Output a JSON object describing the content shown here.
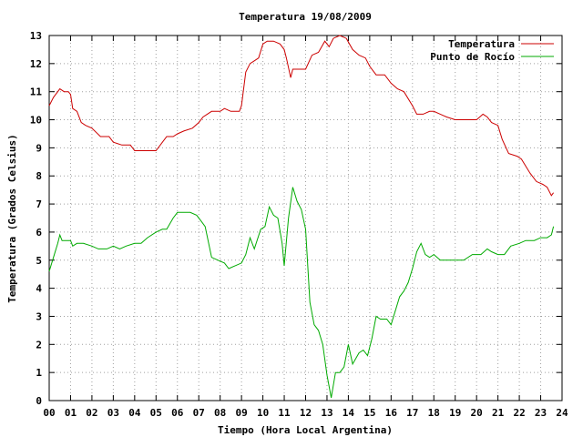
{
  "chart_data": {
    "type": "line",
    "title": "Temperatura 19/08/2009",
    "xlabel": "Tiempo (Hora Local Argentina)",
    "ylabel": "Temperatura (Grados Celsius)",
    "xlim": [
      0,
      24
    ],
    "ylim": [
      0,
      13
    ],
    "x_ticks": [
      "00",
      "01",
      "02",
      "03",
      "04",
      "05",
      "06",
      "07",
      "08",
      "09",
      "10",
      "11",
      "12",
      "13",
      "14",
      "15",
      "16",
      "17",
      "18",
      "19",
      "20",
      "21",
      "22",
      "23",
      "24"
    ],
    "y_ticks": [
      "0",
      "1",
      "2",
      "3",
      "4",
      "5",
      "6",
      "7",
      "8",
      "9",
      "10",
      "11",
      "12",
      "13"
    ],
    "grid": true,
    "legend_position": "top-right",
    "series": [
      {
        "name": "Temperatura",
        "color": "#cc0000",
        "x": [
          0.0,
          0.2,
          0.4,
          0.5,
          0.7,
          0.9,
          1.0,
          1.1,
          1.3,
          1.5,
          1.7,
          2.0,
          2.4,
          2.8,
          3.0,
          3.4,
          3.8,
          4.0,
          4.3,
          4.7,
          5.0,
          5.3,
          5.5,
          5.8,
          6.0,
          6.3,
          6.7,
          7.0,
          7.2,
          7.6,
          8.0,
          8.2,
          8.5,
          8.9,
          9.0,
          9.2,
          9.4,
          9.6,
          9.8,
          10.0,
          10.2,
          10.5,
          10.8,
          11.0,
          11.1,
          11.3,
          11.4,
          11.6,
          12.0,
          12.3,
          12.6,
          12.9,
          13.1,
          13.3,
          13.6,
          13.9,
          14.2,
          14.5,
          14.8,
          15.0,
          15.3,
          15.7,
          16.0,
          16.3,
          16.6,
          17.0,
          17.2,
          17.5,
          17.8,
          18.0,
          18.3,
          18.6,
          19.0,
          19.5,
          20.0,
          20.3,
          20.5,
          20.7,
          21.0,
          21.2,
          21.5,
          21.9,
          22.1,
          22.5,
          22.8,
          23.1,
          23.3,
          23.5,
          23.6
        ],
        "values": [
          10.5,
          10.8,
          11.0,
          11.1,
          11.0,
          11.0,
          10.9,
          10.4,
          10.3,
          9.9,
          9.8,
          9.7,
          9.4,
          9.4,
          9.2,
          9.1,
          9.1,
          8.9,
          8.9,
          8.9,
          8.9,
          9.2,
          9.4,
          9.4,
          9.5,
          9.6,
          9.7,
          9.9,
          10.1,
          10.3,
          10.3,
          10.4,
          10.3,
          10.3,
          10.5,
          11.7,
          12.0,
          12.1,
          12.2,
          12.7,
          12.8,
          12.8,
          12.7,
          12.5,
          12.2,
          11.5,
          11.8,
          11.8,
          11.8,
          12.3,
          12.4,
          12.8,
          12.6,
          12.9,
          13.0,
          12.9,
          12.5,
          12.3,
          12.2,
          11.9,
          11.6,
          11.6,
          11.3,
          11.1,
          11.0,
          10.5,
          10.2,
          10.2,
          10.3,
          10.3,
          10.2,
          10.1,
          10.0,
          10.0,
          10.0,
          10.2,
          10.1,
          9.9,
          9.8,
          9.3,
          8.8,
          8.7,
          8.6,
          8.1,
          7.8,
          7.7,
          7.6,
          7.3,
          7.4
        ]
      },
      {
        "name": "Punto de Rocío",
        "color": "#00aa00",
        "x": [
          0.0,
          0.2,
          0.4,
          0.5,
          0.6,
          0.8,
          1.0,
          1.1,
          1.3,
          1.6,
          2.0,
          2.3,
          2.7,
          3.0,
          3.3,
          3.6,
          4.0,
          4.3,
          4.6,
          5.0,
          5.3,
          5.5,
          5.8,
          6.0,
          6.3,
          6.6,
          6.9,
          7.1,
          7.3,
          7.6,
          7.9,
          8.2,
          8.4,
          8.7,
          9.0,
          9.2,
          9.4,
          9.6,
          9.9,
          10.1,
          10.3,
          10.5,
          10.7,
          10.9,
          11.0,
          11.2,
          11.4,
          11.6,
          11.8,
          12.0,
          12.2,
          12.4,
          12.6,
          12.8,
          13.0,
          13.2,
          13.4,
          13.6,
          13.8,
          14.0,
          14.2,
          14.5,
          14.7,
          14.9,
          15.1,
          15.3,
          15.5,
          15.8,
          16.0,
          16.2,
          16.4,
          16.6,
          16.8,
          17.0,
          17.2,
          17.4,
          17.6,
          17.8,
          18.0,
          18.3,
          18.6,
          19.0,
          19.4,
          19.8,
          20.2,
          20.5,
          20.7,
          21.0,
          21.3,
          21.6,
          22.0,
          22.3,
          22.7,
          23.0,
          23.3,
          23.5,
          23.6
        ],
        "values": [
          4.6,
          5.1,
          5.6,
          5.9,
          5.7,
          5.7,
          5.7,
          5.5,
          5.6,
          5.6,
          5.5,
          5.4,
          5.4,
          5.5,
          5.4,
          5.5,
          5.6,
          5.6,
          5.8,
          6.0,
          6.1,
          6.1,
          6.5,
          6.7,
          6.7,
          6.7,
          6.6,
          6.4,
          6.2,
          5.1,
          5.0,
          4.9,
          4.7,
          4.8,
          4.9,
          5.2,
          5.8,
          5.4,
          6.1,
          6.2,
          6.9,
          6.6,
          6.5,
          5.6,
          4.8,
          6.5,
          7.6,
          7.1,
          6.8,
          6.1,
          3.5,
          2.7,
          2.5,
          2.0,
          0.9,
          0.1,
          1.0,
          1.0,
          1.2,
          2.0,
          1.3,
          1.7,
          1.8,
          1.6,
          2.2,
          3.0,
          2.9,
          2.9,
          2.7,
          3.2,
          3.7,
          3.9,
          4.2,
          4.7,
          5.3,
          5.6,
          5.2,
          5.1,
          5.2,
          5.0,
          5.0,
          5.0,
          5.0,
          5.2,
          5.2,
          5.4,
          5.3,
          5.2,
          5.2,
          5.5,
          5.6,
          5.7,
          5.7,
          5.8,
          5.8,
          5.9,
          6.2
        ]
      }
    ]
  }
}
